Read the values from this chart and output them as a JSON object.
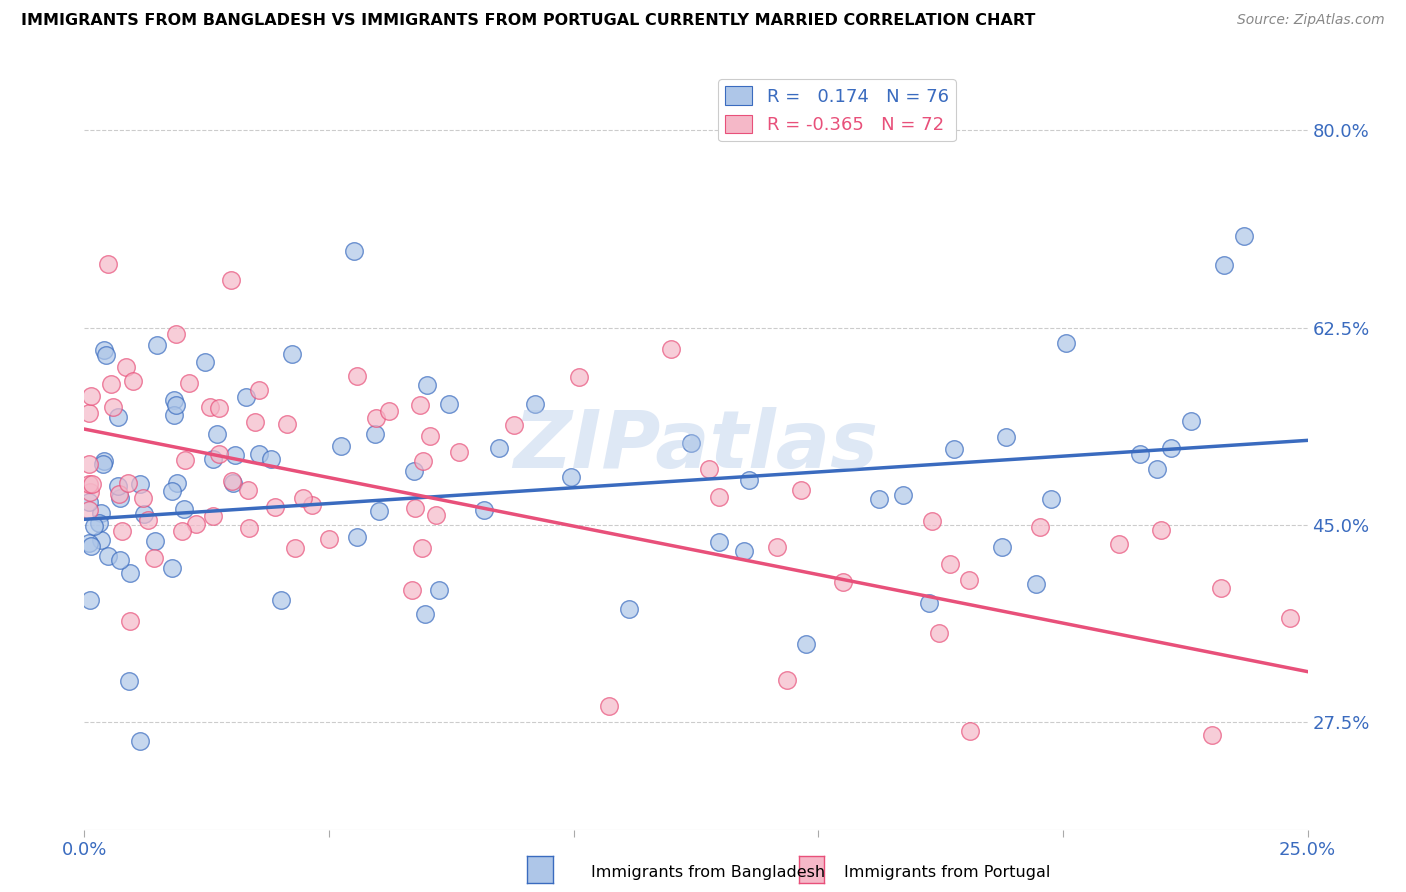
{
  "title": "IMMIGRANTS FROM BANGLADESH VS IMMIGRANTS FROM PORTUGAL CURRENTLY MARRIED CORRELATION CHART",
  "source": "Source: ZipAtlas.com",
  "ylabel": "Currently Married",
  "y_ticks": [
    0.275,
    0.45,
    0.625,
    0.8
  ],
  "y_tick_labels": [
    "27.5%",
    "45.0%",
    "62.5%",
    "80.0%"
  ],
  "x_ticks": [
    0.0,
    0.05,
    0.1,
    0.15,
    0.2,
    0.25
  ],
  "x_tick_labels": [
    "0.0%",
    "",
    "",
    "",
    "",
    "25.0%"
  ],
  "x_min": 0.0,
  "x_max": 0.25,
  "y_min": 0.18,
  "y_max": 0.86,
  "r_bangladesh": 0.174,
  "n_bangladesh": 76,
  "r_portugal": -0.365,
  "n_portugal": 72,
  "color_bangladesh": "#aec6e8",
  "color_portugal": "#f5b8c8",
  "trendline_color_bangladesh": "#3a6bbf",
  "trendline_color_portugal": "#e8507a",
  "watermark": "ZIPatlas",
  "legend_label_bangladesh": "Immigrants from Bangladesh",
  "legend_label_portugal": "Immigrants from Portugal",
  "bd_trend_x0": 0.0,
  "bd_trend_y0": 0.455,
  "bd_trend_x1": 0.25,
  "bd_trend_y1": 0.525,
  "pt_trend_x0": 0.0,
  "pt_trend_y0": 0.535,
  "pt_trend_x1": 0.25,
  "pt_trend_y1": 0.32
}
